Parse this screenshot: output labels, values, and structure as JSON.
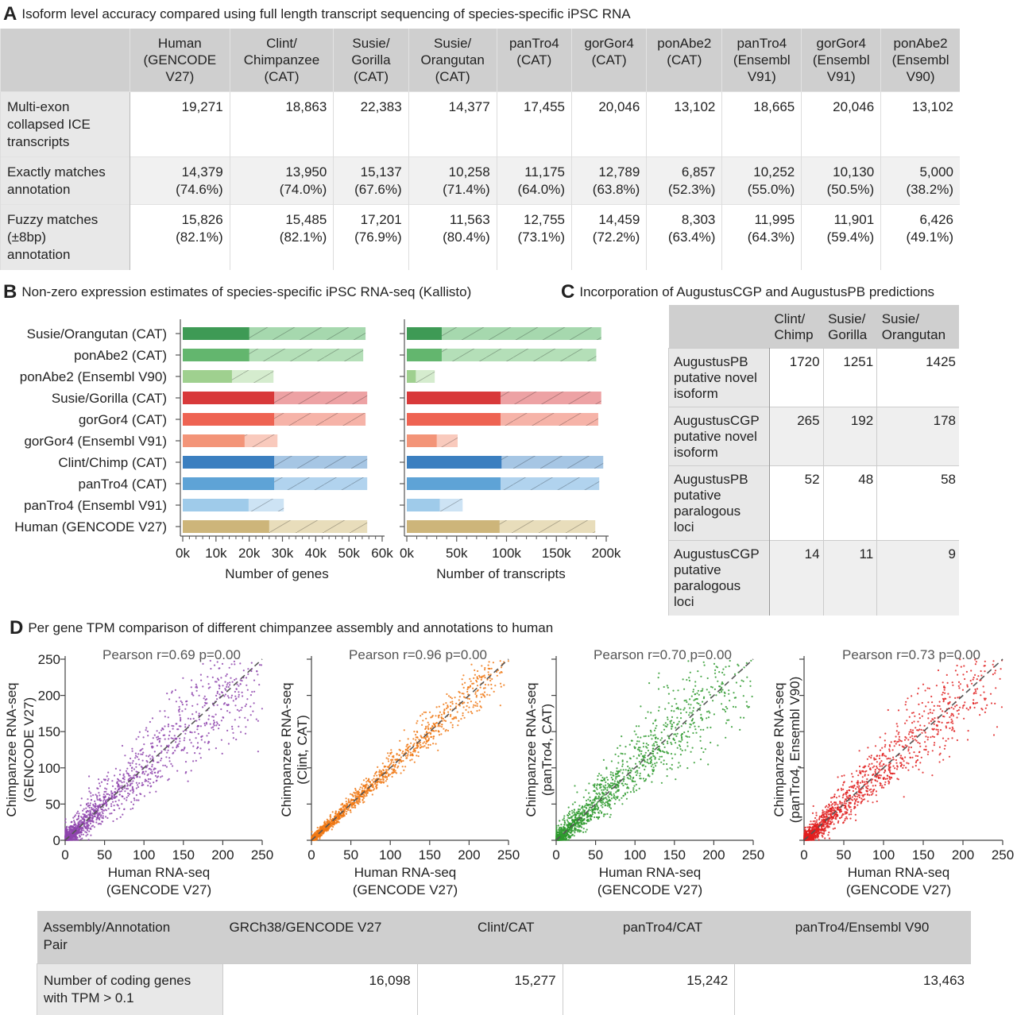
{
  "panelA": {
    "letter": "A",
    "title": "Isoform level accuracy compared using full length transcript sequencing of species-specific iPSC RNA",
    "columns": [
      [
        "Human",
        "(GENCODE",
        "V27)"
      ],
      [
        "Clint/",
        "Chimpanzee",
        "(CAT)"
      ],
      [
        "Susie/",
        "Gorilla",
        "(CAT)"
      ],
      [
        "Susie/",
        "Orangutan",
        "(CAT)"
      ],
      [
        "panTro4",
        "(CAT)"
      ],
      [
        "gorGor4",
        "(CAT)"
      ],
      [
        "ponAbe2",
        "(CAT)"
      ],
      [
        "panTro4",
        "(Ensembl",
        "V91)"
      ],
      [
        "gorGor4",
        "(Ensembl",
        "V91)"
      ],
      [
        "ponAbe2",
        "(Ensembl",
        "V90)"
      ]
    ],
    "rows": [
      {
        "label": [
          "Multi-exon",
          "collapsed ICE",
          "transcripts"
        ],
        "cells": [
          [
            "19,271"
          ],
          [
            "18,863"
          ],
          [
            "22,383"
          ],
          [
            "14,377"
          ],
          [
            "17,455"
          ],
          [
            "20,046"
          ],
          [
            "13,102"
          ],
          [
            "18,665"
          ],
          [
            "20,046"
          ],
          [
            "13,102"
          ]
        ]
      },
      {
        "label": [
          "Exactly matches",
          "annotation"
        ],
        "cells": [
          [
            "14,379",
            "(74.6%)"
          ],
          [
            "13,950",
            "(74.0%)"
          ],
          [
            "15,137",
            "(67.6%)"
          ],
          [
            "10,258",
            "(71.4%)"
          ],
          [
            "11,175",
            "(64.0%)"
          ],
          [
            "12,789",
            "(63.8%)"
          ],
          [
            "6,857",
            "(52.3%)"
          ],
          [
            "10,252",
            "(55.0%)"
          ],
          [
            "10,130",
            "(50.5%)"
          ],
          [
            "5,000",
            "(38.2%)"
          ]
        ]
      },
      {
        "label": [
          "Fuzzy matches",
          "(±8bp)",
          "annotation"
        ],
        "cells": [
          [
            "15,826",
            "(82.1%)"
          ],
          [
            "15,485",
            "(82.1%)"
          ],
          [
            "17,201",
            "(76.9%)"
          ],
          [
            "11,563",
            "(80.4%)"
          ],
          [
            "12,755",
            "(73.1%)"
          ],
          [
            "14,459",
            "(72.2%)"
          ],
          [
            "8,303",
            "(63.4%)"
          ],
          [
            "11,995",
            "(64.3%)"
          ],
          [
            "11,901",
            "(59.4%)"
          ],
          [
            "6,426",
            "(49.1%)"
          ]
        ]
      }
    ]
  },
  "panelB": {
    "letter": "B",
    "title": "Non-zero expression estimates of species-specific iPSC RNA-seq (Kallisto)"
  },
  "panelC": {
    "letter": "C",
    "title": "Incorporation of AugustusCGP and AugustusPB predictions",
    "columns": [
      [
        "Clint/",
        "Chimp"
      ],
      [
        "Susie/",
        "Gorilla"
      ],
      [
        "Susie/",
        "Orangutan"
      ]
    ],
    "rows": [
      {
        "label": [
          "AugustusPB",
          "putative novel",
          "isoform"
        ],
        "cells": [
          "1720",
          "1251",
          "1425"
        ]
      },
      {
        "label": [
          "AugustusCGP",
          "putative novel",
          "isoform"
        ],
        "cells": [
          "265",
          "192",
          "178"
        ]
      },
      {
        "label": [
          "AugustusPB",
          "putative",
          "paralogous",
          "loci"
        ],
        "cells": [
          "52",
          "48",
          "58"
        ]
      },
      {
        "label": [
          "AugustusCGP",
          "putative",
          "paralogous",
          "loci"
        ],
        "cells": [
          "14",
          "11",
          "9"
        ]
      }
    ]
  },
  "panelD": {
    "letter": "D",
    "title": "Per gene TPM comparison of different chimpanzee assembly and annotations to human",
    "table": {
      "header_label": [
        "Assembly/Annotation",
        "Pair"
      ],
      "columns": [
        "GRCh38/GENCODE V27",
        "Clint/CAT",
        "panTro4/CAT",
        "panTro4/Ensembl V90"
      ],
      "row_label": [
        "Number of coding genes",
        "with TPM > 0.1"
      ],
      "values": [
        "16,098",
        "15,277",
        "15,242",
        "13,463"
      ]
    }
  },
  "chart_data": [
    {
      "type": "bar",
      "xlabel": "Number of genes",
      "xlim": [
        0,
        60000
      ],
      "xticks": [
        "0k",
        "10k",
        "20k",
        "30k",
        "40k",
        "50k",
        "60k"
      ],
      "categories": [
        "Susie/Orangutan (CAT)",
        "ponAbe2 (CAT)",
        "ponAbe2 (Ensembl V90)",
        "Susie/Gorilla (CAT)",
        "gorGor4 (CAT)",
        "gorGor4 (Ensembl V91)",
        "Clint/Chimp (CAT)",
        "panTro4 (CAT)",
        "panTro4 (Ensembl V91)",
        "Human (GENCODE V27)"
      ],
      "series": [
        {
          "values": [
            20000,
            20000,
            14800,
            27500,
            27500,
            18600,
            27500,
            27500,
            19800,
            26000
          ]
        },
        {
          "values": [
            55000,
            54300,
            27300,
            55500,
            55000,
            28500,
            55500,
            55500,
            30400,
            55500
          ]
        }
      ],
      "colors": {
        "dark": [
          "#3e9a55",
          "#63b66e",
          "#9fd08f",
          "#d8393a",
          "#ee6352",
          "#f39478",
          "#3b7fc0",
          "#5ea3d6",
          "#9fcbea",
          "#cdb57a"
        ],
        "light": [
          "#a6d8ae",
          "#b4dfb8",
          "#d5ecce",
          "#eda2a4",
          "#f6b3a8",
          "#f9cabd",
          "#a6c6e4",
          "#b1d3ee",
          "#cde3f4",
          "#e8ddbb"
        ]
      }
    },
    {
      "type": "bar",
      "xlabel": "Number of transcripts",
      "xlim": [
        0,
        200000
      ],
      "xticks": [
        "0k",
        "50k",
        "100k",
        "150k",
        "200k"
      ],
      "categories": [
        "Susie/Orangutan (CAT)",
        "ponAbe2 (CAT)",
        "ponAbe2 (Ensembl V90)",
        "Susie/Gorilla (CAT)",
        "gorGor4 (CAT)",
        "gorGor4 (Ensembl V91)",
        "Clint/Chimp (CAT)",
        "panTro4 (CAT)",
        "panTro4 (Ensembl V91)",
        "Human (GENCODE V27)"
      ],
      "series": [
        {
          "values": [
            35000,
            35000,
            9000,
            94000,
            94000,
            30000,
            95000,
            94000,
            33000,
            93000
          ]
        },
        {
          "values": [
            195000,
            190000,
            28000,
            195000,
            192000,
            51000,
            197000,
            193000,
            56000,
            189000
          ]
        }
      ]
    },
    {
      "type": "scatter",
      "title": "Pearson r=0.69 p=0.00",
      "xlabel": [
        "Human RNA-seq",
        "(GENCODE V27)"
      ],
      "ylabel": [
        "Chimpanzee RNA-seq",
        "(GENCODE V27)"
      ],
      "xlim": [
        0,
        250
      ],
      "ylim": [
        0,
        250
      ],
      "xticks": [
        "0",
        "50",
        "100",
        "150",
        "200",
        "250"
      ],
      "yticks": [
        "0",
        "50",
        "100",
        "150",
        "200",
        "250"
      ],
      "color": "#8e44ad",
      "r": 0.69,
      "n_points": 1600
    },
    {
      "type": "scatter",
      "title": "Pearson r=0.96 p=0.00",
      "xlabel": [
        "Human RNA-seq",
        "(GENCODE V27)"
      ],
      "ylabel": [
        "Chimpanzee RNA-seq",
        "(Clint, CAT)"
      ],
      "xlim": [
        0,
        250
      ],
      "ylim": [
        0,
        250
      ],
      "xticks": [
        "0",
        "50",
        "100",
        "150",
        "200",
        "250"
      ],
      "color": "#f07814",
      "r": 0.96,
      "n_points": 1600
    },
    {
      "type": "scatter",
      "title": "Pearson r=0.70 p=0.00",
      "xlabel": [
        "Human RNA-seq",
        "(GENCODE V27)"
      ],
      "ylabel": [
        "Chimpanzee RNA-seq",
        "(panTro4, CAT)"
      ],
      "xlim": [
        0,
        250
      ],
      "ylim": [
        0,
        250
      ],
      "xticks": [
        "0",
        "50",
        "100",
        "150",
        "200",
        "250"
      ],
      "color": "#2e9a2e",
      "r": 0.7,
      "n_points": 1600
    },
    {
      "type": "scatter",
      "title": "Pearson r=0.73 p=0.00",
      "xlabel": [
        "Human RNA-seq",
        "(GENCODE V27)"
      ],
      "ylabel": [
        "Chimpanzee RNA-seq",
        "(panTro4, Ensembl V90)"
      ],
      "xlim": [
        0,
        250
      ],
      "ylim": [
        0,
        250
      ],
      "xticks": [
        "0",
        "50",
        "100",
        "150",
        "200",
        "250"
      ],
      "color": "#e02020",
      "r": 0.73,
      "n_points": 1600
    }
  ]
}
